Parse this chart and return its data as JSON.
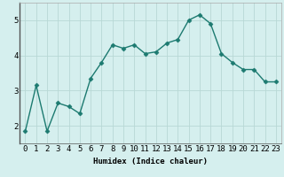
{
  "xlabel": "Humidex (Indice chaleur)",
  "ylabel": "",
  "x": [
    0,
    1,
    2,
    3,
    4,
    5,
    6,
    7,
    8,
    9,
    10,
    11,
    12,
    13,
    14,
    15,
    16,
    17,
    18,
    19,
    20,
    21,
    22,
    23
  ],
  "y": [
    1.85,
    3.15,
    1.85,
    2.65,
    2.55,
    2.35,
    3.35,
    3.8,
    4.3,
    4.2,
    4.3,
    4.05,
    4.1,
    4.35,
    4.45,
    5.0,
    5.15,
    4.9,
    4.05,
    3.8,
    3.6,
    3.6,
    3.25,
    3.25
  ],
  "line_color": "#1c7a70",
  "marker": "D",
  "marker_size": 2.5,
  "bg_color": "#d5efee",
  "grid_color": "#b8d8d5",
  "ylim": [
    1.5,
    5.5
  ],
  "yticks": [
    2,
    3,
    4,
    5
  ],
  "xticks": [
    0,
    1,
    2,
    3,
    4,
    5,
    6,
    7,
    8,
    9,
    10,
    11,
    12,
    13,
    14,
    15,
    16,
    17,
    18,
    19,
    20,
    21,
    22,
    23
  ],
  "xlabel_fontsize": 6.5,
  "tick_fontsize": 6.5,
  "ylabel_fontsize": 6.5,
  "linewidth": 1.0
}
